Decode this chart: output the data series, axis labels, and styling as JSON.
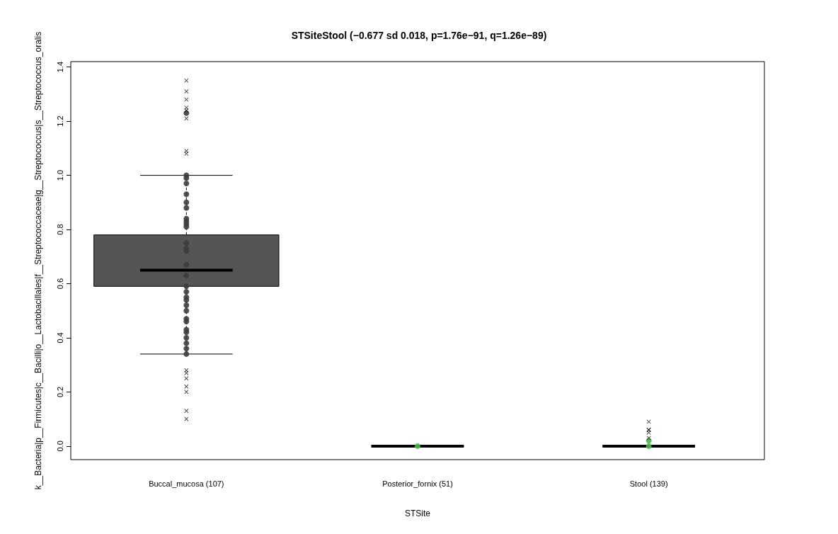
{
  "chart_data": {
    "type": "box",
    "title": "STSiteStool (−0.677 sd 0.018, p=1.76e−91, q=1.26e−89)",
    "xlabel": "STSite",
    "ylabel": "k__Bacteria|p__Firmicutes|c__Bacilli|o__Lactobacillales|f__Streptococcaceae|g__Streptococcus|s__Streptococcus_oralis",
    "categories": [
      "Buccal_mucosa (107)",
      "Posterior_fornix (51)",
      "Stool (139)"
    ],
    "colors": [
      "#555555",
      "#000000",
      "#000000"
    ],
    "boxes": [
      {
        "low": 0.34,
        "q1": 0.59,
        "median": 0.65,
        "q3": 0.78,
        "high": 1.0,
        "outliers": [
          1.35,
          1.31,
          1.28,
          1.25,
          1.24,
          1.21,
          1.09,
          1.08,
          0.28,
          0.27,
          0.25,
          0.22,
          0.2,
          0.13,
          0.1
        ]
      },
      {
        "low": 0,
        "q1": 0,
        "median": 0,
        "q3": 0,
        "high": 0
      },
      {
        "low": 0,
        "q1": 0,
        "median": 0,
        "q3": 0,
        "high": 0,
        "outliers": [
          0.09,
          0.06,
          0.06,
          0.05,
          0.03
        ]
      }
    ],
    "series": [
      {
        "type": "scatter",
        "color": "#3d3d3d",
        "x": [
          "Buccal_mucosa (107)",
          "Buccal_mucosa (107)",
          "Buccal_mucosa (107)",
          "Buccal_mucosa (107)",
          "Buccal_mucosa (107)",
          "Buccal_mucosa (107)",
          "Buccal_mucosa (107)",
          "Buccal_mucosa (107)",
          "Buccal_mucosa (107)",
          "Buccal_mucosa (107)",
          "Buccal_mucosa (107)",
          "Buccal_mucosa (107)",
          "Buccal_mucosa (107)",
          "Buccal_mucosa (107)",
          "Buccal_mucosa (107)",
          "Buccal_mucosa (107)",
          "Buccal_mucosa (107)",
          "Buccal_mucosa (107)",
          "Buccal_mucosa (107)",
          "Buccal_mucosa (107)",
          "Buccal_mucosa (107)",
          "Buccal_mucosa (107)",
          "Buccal_mucosa (107)",
          "Buccal_mucosa (107)",
          "Buccal_mucosa (107)",
          "Buccal_mucosa (107)",
          "Buccal_mucosa (107)",
          "Buccal_mucosa (107)",
          "Buccal_mucosa (107)",
          "Buccal_mucosa (107)"
        ],
        "values": [
          1.23,
          1.0,
          0.99,
          0.97,
          0.93,
          0.9,
          0.88,
          0.84,
          0.83,
          0.82,
          0.81,
          0.75,
          0.73,
          0.72,
          0.67,
          0.63,
          0.59,
          0.57,
          0.55,
          0.54,
          0.52,
          0.5,
          0.47,
          0.46,
          0.43,
          0.42,
          0.4,
          0.38,
          0.36,
          0.34
        ]
      },
      {
        "type": "scatter",
        "color": "#4cb84c",
        "x": [
          "Posterior_fornix (51)"
        ],
        "values": [
          0
        ]
      },
      {
        "type": "scatter",
        "color": "#4cb84c",
        "x": [
          "Stool (139)",
          "Stool (139)"
        ],
        "values": [
          0.02,
          0
        ]
      }
    ],
    "marker": "circle",
    "ylim": [
      -0.05,
      1.42
    ],
    "yticks": [
      {
        "value": 0,
        "label": "0.0"
      },
      0.2,
      0.4,
      0.6,
      0.8,
      {
        "value": 1,
        "label": "1.0"
      },
      1.2,
      1.4
    ],
    "grid": false
  }
}
